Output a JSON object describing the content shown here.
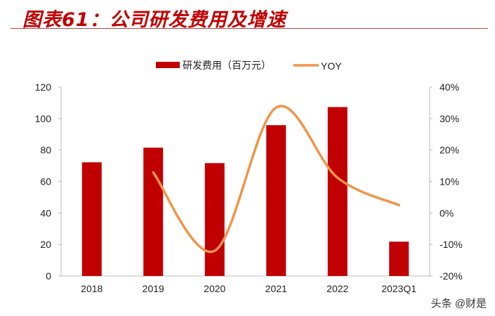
{
  "title": "图表61：公司研发费用及增速",
  "watermark": "头条 @财是",
  "chart_data": {
    "type": "bar+line",
    "categories": [
      "2018",
      "2019",
      "2020",
      "2021",
      "2022",
      "2023Q1"
    ],
    "series": [
      {
        "name": "研发费用（百万元）",
        "type": "bar",
        "axis": "left",
        "color": "#c00000",
        "values": [
          72.2,
          81.5,
          71.7,
          95.8,
          107.3,
          21.8
        ]
      },
      {
        "name": "YOY",
        "type": "line",
        "axis": "right",
        "color": "#f0954a",
        "values": [
          null,
          12.9,
          -12.0,
          33.5,
          11.2,
          2.5
        ]
      }
    ],
    "left_axis": {
      "ylim": [
        0,
        120
      ],
      "ticks": [
        "0",
        "20",
        "40",
        "60",
        "80",
        "100",
        "120"
      ]
    },
    "right_axis": {
      "ylim": [
        -20,
        40
      ],
      "ticks": [
        "-20%",
        "-10%",
        "0%",
        "10%",
        "20%",
        "30%",
        "40%"
      ]
    },
    "legend": "top-center",
    "grid": false
  }
}
